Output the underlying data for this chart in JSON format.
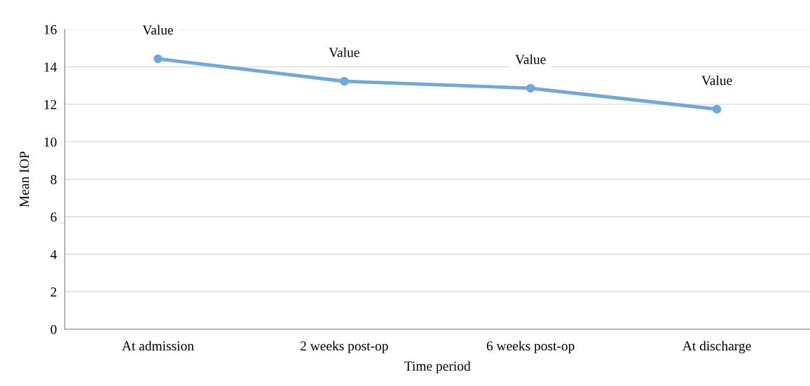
{
  "chart_data": {
    "type": "line",
    "xlabel": "Time period",
    "ylabel": "Mean IOP",
    "categories": [
      "At admission",
      "2 weeks post-op",
      "6 weeks post-op",
      "At discharge"
    ],
    "series": [
      {
        "color": "#6fa8dc",
        "values": [
          14.43,
          13.23,
          12.86,
          11.74
        ],
        "value_labels": [
          "Value",
          "Value",
          "Value",
          "Value"
        ]
      }
    ],
    "ylim": [
      0,
      16
    ],
    "yticks": [
      0,
      2,
      4,
      6,
      8,
      10,
      12,
      14,
      16
    ],
    "grid": "y",
    "marker": "circle",
    "line_style": "solid"
  }
}
